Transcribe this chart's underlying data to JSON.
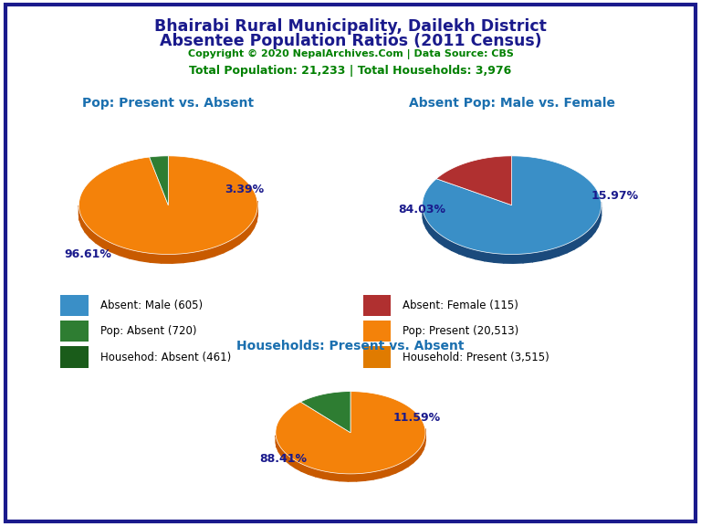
{
  "title_line1": "Bhairabi Rural Municipality, Dailekh District",
  "title_line2": "Absentee Population Ratios (2011 Census)",
  "copyright_text": "Copyright © 2020 NepalArchives.Com | Data Source: CBS",
  "stats_text": "Total Population: 21,233 | Total Households: 3,976",
  "title_color": "#1a1a8c",
  "copyright_color": "#008000",
  "stats_color": "#008000",
  "pie1_title": "Pop: Present vs. Absent",
  "pie1_title_color": "#1a6faf",
  "pie1_values": [
    20513,
    720
  ],
  "pie1_colors": [
    "#f4820a",
    "#2e7d32"
  ],
  "pie1_edge_colors": [
    "#c85a00",
    "#1a4a1a"
  ],
  "pie1_labels": [
    "96.61%",
    "3.39%"
  ],
  "pie2_title": "Absent Pop: Male vs. Female",
  "pie2_title_color": "#1a6faf",
  "pie2_values": [
    605,
    115
  ],
  "pie2_colors": [
    "#3a8fc7",
    "#b03030"
  ],
  "pie2_edge_colors": [
    "#1a4a7c",
    "#7a1010"
  ],
  "pie2_labels": [
    "84.03%",
    "15.97%"
  ],
  "pie3_title": "Households: Present vs. Absent",
  "pie3_title_color": "#1a6faf",
  "pie3_values": [
    3515,
    461
  ],
  "pie3_colors": [
    "#f4820a",
    "#2e7d32"
  ],
  "pie3_edge_colors": [
    "#c85a00",
    "#1a4a1a"
  ],
  "pie3_labels": [
    "88.41%",
    "11.59%"
  ],
  "label_color": "#1a1a8c",
  "legend_items": [
    {
      "label": "Absent: Male (605)",
      "color": "#3a8fc7"
    },
    {
      "label": "Absent: Female (115)",
      "color": "#b03030"
    },
    {
      "label": "Pop: Absent (720)",
      "color": "#2e7d32"
    },
    {
      "label": "Pop: Present (20,513)",
      "color": "#f4820a"
    },
    {
      "label": "Househod: Absent (461)",
      "color": "#1a5c1a"
    },
    {
      "label": "Household: Present (3,515)",
      "color": "#e07b00"
    }
  ],
  "background_color": "#ffffff",
  "border_color": "#1a1a8c"
}
